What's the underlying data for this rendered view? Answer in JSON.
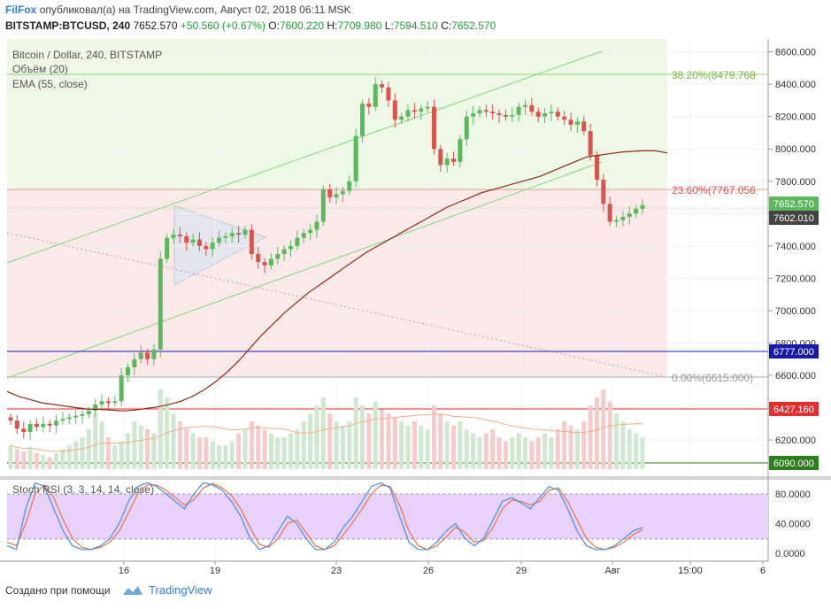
{
  "header": {
    "author": "FilFox",
    "published_text": "опубликовал(а) на TradingView.com, Август 02, 2018 06:11 MSK",
    "symbol": "BITSTAMP:BTCUSD, 240",
    "last": "7652.570",
    "change": "+50.560 (+0.67%)",
    "open_label": "O:",
    "open": "7600.220",
    "high_label": "H:",
    "high": "7709.980",
    "low_label": "L:",
    "low": "7594.510",
    "close_label": "C:",
    "close": "7652.570"
  },
  "legend": {
    "main": "Bitcoin / Dollar, 240, BITSTAMP",
    "volume": "Объём (20)",
    "ema": "EMA (55, close)",
    "stoch": "Stoch RSI (3, 3, 14, 14, close)"
  },
  "fib_labels": {
    "f382": "38.20%(8479.768",
    "f236": "23.60%(7767.056",
    "f0": "0.00%(6615.000)"
  },
  "price_badges": {
    "last": "7652.570",
    "ema": "7602.010",
    "blue": "6777.000",
    "red": "6427.160",
    "green": "6090.000"
  },
  "footer": {
    "created": "Создано при помощи",
    "brand": "TradingView"
  },
  "colors": {
    "up": "#5cb85c",
    "down": "#d9534f",
    "ema": "#8b2b1a",
    "channel": "#7fd87f",
    "blue_line": "#1a1aa8",
    "red_line": "#e03030",
    "green_line": "#2e7d1e",
    "stoch_k": "#4a90e2",
    "stoch_d": "#e8734a",
    "stoch_bg": "#e6ccff"
  },
  "chart_data": [
    {
      "type": "candlestick",
      "title": "Bitcoin / Dollar, 240, BITSTAMP",
      "xlabel": "",
      "ylabel": "",
      "ylim": [
        6020,
        8680
      ],
      "y_ticks": [
        6200,
        6400,
        6600,
        6800,
        7000,
        7200,
        7400,
        7600,
        7800,
        8000,
        8200,
        8400,
        8600
      ],
      "y_tick_labels": [
        "6200.000",
        "6400.000",
        "6600.000",
        "6800.000",
        "7000.000",
        "7200.000",
        "7400.000",
        "7600.000",
        "7800.000",
        "8000.000",
        "8200.000",
        "8400.000",
        "8600.000"
      ],
      "x_tick_labels": [
        "16",
        "19",
        "23",
        "26",
        "29",
        "Авг",
        "15:00",
        "6"
      ],
      "horizontal_lines": [
        6777,
        6427.16,
        6090
      ],
      "fib_levels": [
        {
          "level": "38.20%",
          "price": 8479.768
        },
        {
          "level": "23.60%",
          "price": 7767.056
        },
        {
          "level": "0.00%",
          "price": 6615.0
        }
      ],
      "closes": [
        6320,
        6270,
        6250,
        6300,
        6280,
        6300,
        6290,
        6320,
        6330,
        6340,
        6350,
        6360,
        6380,
        6420,
        6440,
        6430,
        6440,
        6600,
        6650,
        6700,
        6740,
        6700,
        6760,
        7320,
        7450,
        7470,
        7460,
        7420,
        7440,
        7400,
        7380,
        7420,
        7450,
        7460,
        7480,
        7470,
        7500,
        7350,
        7300,
        7280,
        7320,
        7350,
        7380,
        7400,
        7450,
        7480,
        7500,
        7550,
        7750,
        7700,
        7720,
        7740,
        7800,
        8080,
        8280,
        8260,
        8400,
        8380,
        8300,
        8180,
        8200,
        8240,
        8230,
        8250,
        8260,
        8000,
        7900,
        7940,
        7920,
        8060,
        8200,
        8220,
        8240,
        8230,
        8220,
        8210,
        8200,
        8210,
        8260,
        8270,
        8230,
        8200,
        8220,
        8230,
        8200,
        8180,
        8150,
        8170,
        8110,
        7960,
        7810,
        7660,
        7550,
        7560,
        7580,
        7600,
        7630,
        7653
      ],
      "ema55": [
        6500,
        6470,
        6450,
        6430,
        6420,
        6410,
        6400,
        6390,
        6390,
        6385,
        6380,
        6385,
        6395,
        6405,
        6420,
        6440,
        6470,
        6510,
        6560,
        6620,
        6690,
        6770,
        6850,
        6920,
        6990,
        7050,
        7110,
        7160,
        7210,
        7260,
        7310,
        7360,
        7400,
        7440,
        7480,
        7520,
        7560,
        7600,
        7640,
        7670,
        7700,
        7730,
        7750,
        7770,
        7790,
        7810,
        7830,
        7860,
        7890,
        7920,
        7950,
        7960,
        7970,
        7980,
        7985,
        7990,
        7988,
        7975
      ],
      "volume_approx": [
        30,
        25,
        22,
        28,
        20,
        18,
        15,
        20,
        25,
        30,
        35,
        40,
        50,
        70,
        60,
        40,
        30,
        35,
        45,
        60,
        55,
        50,
        45,
        100,
        90,
        70,
        60,
        50,
        45,
        40,
        40,
        35,
        30,
        30,
        35,
        45,
        50,
        60,
        55,
        50,
        45,
        40,
        40,
        45,
        50,
        60,
        70,
        80,
        90,
        70,
        60,
        55,
        60,
        90,
        80,
        70,
        85,
        75,
        70,
        65,
        60,
        55,
        60,
        55,
        50,
        80,
        70,
        60,
        55,
        60,
        50,
        45,
        40,
        45,
        50,
        40,
        35,
        40,
        45,
        40,
        35,
        40,
        45,
        40,
        50,
        60,
        55,
        50,
        60,
        80,
        90,
        100,
        85,
        70,
        60,
        50,
        45,
        40
      ]
    },
    {
      "type": "line",
      "title": "Stoch RSI (3, 3, 14, 14, close)",
      "xlabel": "",
      "ylabel": "",
      "ylim": [
        -5,
        95
      ],
      "y_ticks": [
        0,
        40,
        80
      ],
      "y_tick_labels": [
        "0.0000",
        "40.0000",
        "80.0000"
      ],
      "series": [
        {
          "name": "K",
          "values": [
            10,
            5,
            60,
            95,
            90,
            60,
            30,
            10,
            5,
            5,
            10,
            20,
            40,
            70,
            90,
            95,
            90,
            80,
            70,
            60,
            80,
            95,
            92,
            85,
            70,
            50,
            20,
            5,
            10,
            30,
            50,
            40,
            20,
            5,
            5,
            15,
            35,
            50,
            70,
            90,
            95,
            88,
            50,
            15,
            5,
            5,
            15,
            30,
            40,
            20,
            10,
            20,
            45,
            70,
            75,
            68,
            60,
            75,
            90,
            85,
            60,
            30,
            10,
            5,
            5,
            10,
            20,
            30,
            35
          ]
        },
        {
          "name": "D",
          "values": [
            15,
            10,
            40,
            80,
            92,
            75,
            45,
            20,
            8,
            5,
            8,
            15,
            30,
            55,
            80,
            92,
            92,
            85,
            75,
            65,
            72,
            88,
            94,
            88,
            78,
            60,
            35,
            12,
            8,
            20,
            40,
            45,
            28,
            10,
            5,
            10,
            25,
            42,
            60,
            80,
            92,
            90,
            65,
            30,
            10,
            5,
            10,
            22,
            35,
            28,
            15,
            17,
            35,
            60,
            72,
            70,
            65,
            70,
            85,
            88,
            70,
            45,
            20,
            8,
            5,
            8,
            15,
            25,
            32
          ]
        }
      ]
    }
  ]
}
